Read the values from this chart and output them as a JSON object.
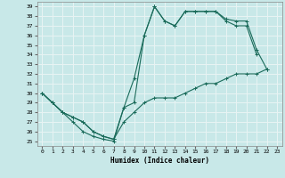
{
  "xlabel": "Humidex (Indice chaleur)",
  "xlim": [
    -0.5,
    23.5
  ],
  "ylim": [
    24.5,
    39.5
  ],
  "xticks": [
    0,
    1,
    2,
    3,
    4,
    5,
    6,
    7,
    8,
    9,
    10,
    11,
    12,
    13,
    14,
    15,
    16,
    17,
    18,
    19,
    20,
    21,
    22,
    23
  ],
  "yticks": [
    25,
    26,
    27,
    28,
    29,
    30,
    31,
    32,
    33,
    34,
    35,
    36,
    37,
    38,
    39
  ],
  "bg_color": "#c8e8e8",
  "grid_color": "#e8f4f4",
  "line_color": "#1a6b5a",
  "curve1_x": [
    0,
    1,
    2,
    3,
    4,
    5,
    6,
    7,
    8,
    9,
    10,
    11,
    12,
    13,
    14,
    15,
    16,
    17,
    18,
    19,
    20,
    21
  ],
  "curve1_y": [
    30,
    29,
    28,
    27,
    26,
    25.5,
    25.2,
    25,
    28.5,
    31.5,
    36,
    39,
    37.5,
    37,
    38.5,
    38.5,
    38.5,
    38.5,
    37.5,
    37,
    37,
    34
  ],
  "curve2_x": [
    0,
    1,
    2,
    3,
    4,
    5,
    6,
    7,
    8,
    9,
    10,
    11,
    12,
    13,
    14,
    15,
    16,
    17,
    18,
    19,
    20,
    21,
    22
  ],
  "curve2_y": [
    30,
    29,
    28,
    27.5,
    27,
    26,
    25.5,
    25.2,
    28.5,
    29,
    36,
    39,
    37.5,
    37,
    38.5,
    38.5,
    38.5,
    38.5,
    37.7,
    37.5,
    37.5,
    34.5,
    32.5
  ],
  "curve3_x": [
    0,
    1,
    2,
    3,
    4,
    5,
    6,
    7,
    8,
    9,
    10,
    11,
    12,
    13,
    14,
    15,
    16,
    17,
    18,
    19,
    20,
    21,
    22
  ],
  "curve3_y": [
    30,
    29,
    28,
    27.5,
    27,
    26,
    25.5,
    25.2,
    27,
    28,
    29,
    29.5,
    29.5,
    29.5,
    30,
    30.5,
    31,
    31,
    31.5,
    32,
    32,
    32,
    32.5
  ]
}
